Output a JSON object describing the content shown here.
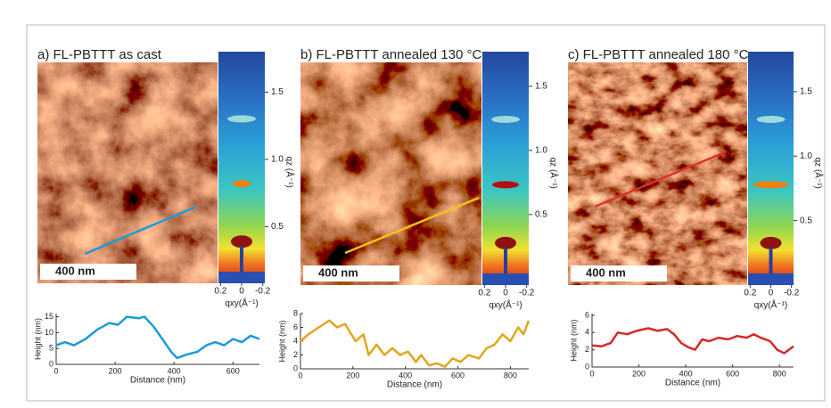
{
  "panels": [
    {
      "title": "a) FL-PBTTT as cast",
      "scale_bar": "400 nm",
      "qz_label": "qz (Å⁻¹)",
      "qz_lim": [
        0.08,
        1.8
      ],
      "qz_ticks": [
        0.5,
        {
          "value": 1,
          "label": "1.0"
        },
        1.5
      ],
      "qxy_label": "qxy(Å⁻¹)",
      "qxy_lim": [
        0.22,
        -0.22
      ],
      "qxy_ticks": [
        0.2,
        0,
        -0.2
      ]
    },
    {
      "title": "b) FL-PBTTT annealed 130 °C",
      "scale_bar": "400 nm",
      "qz_label": "qz (Å⁻¹)",
      "qz_lim": [
        -0.05,
        1.77
      ],
      "qz_ticks": [
        0.5,
        {
          "value": 1,
          "label": "1.0"
        },
        1.5
      ],
      "qxy_label": "qxy(Å⁻¹)",
      "qxy_lim": [
        0.22,
        -0.22
      ],
      "qxy_ticks": [
        0.2,
        0,
        -0.2
      ]
    },
    {
      "title": "c) FL-PBTTT annealed 180 °C",
      "scale_bar": "400 nm",
      "qz_label": "qz (Å⁻¹)",
      "qz_lim": [
        0,
        1.81
      ],
      "qz_ticks": [
        0.5,
        {
          "value": 1,
          "label": "1.0"
        },
        1.5
      ],
      "qxy_label": "qxy(Å⁻¹)",
      "qxy_lim": [
        0.22,
        -0.22
      ],
      "qxy_ticks": [
        0.2,
        0,
        -0.2
      ]
    }
  ],
  "chart_data": [
    {
      "type": "line",
      "x_label": "Distance (nm)",
      "y_label": "Height (nm)",
      "color": "#1a9bd7",
      "x": [
        0,
        30,
        60,
        100,
        140,
        180,
        210,
        240,
        280,
        300,
        330,
        360,
        390,
        410,
        440,
        480,
        510,
        540,
        570,
        600,
        630,
        660,
        690
      ],
      "values": [
        6,
        7,
        6,
        8,
        11,
        13,
        12.5,
        15,
        14.5,
        15,
        12,
        8,
        4,
        2,
        3,
        4,
        6,
        7,
        6,
        8,
        7,
        9,
        8
      ],
      "xlim": [
        0,
        690
      ],
      "ylim": [
        0,
        16
      ],
      "xticks": [
        0,
        200,
        400,
        600
      ],
      "yticks": [
        0,
        5,
        10,
        15
      ]
    },
    {
      "type": "line",
      "x_label": "Distance (nm)",
      "y_label": "Height (nm)",
      "color": "#e0a61c",
      "x": [
        0,
        30,
        70,
        110,
        140,
        170,
        210,
        240,
        260,
        290,
        320,
        350,
        380,
        410,
        440,
        460,
        490,
        520,
        550,
        580,
        610,
        640,
        680,
        710,
        740,
        770,
        800,
        830,
        850,
        870
      ],
      "values": [
        4,
        5,
        6,
        7,
        6,
        6.5,
        4,
        5,
        2,
        3.5,
        2,
        3,
        2,
        2.5,
        1,
        2,
        0.5,
        0.8,
        0.3,
        1.5,
        1,
        2,
        1.5,
        3,
        3.5,
        5,
        4,
        6,
        5,
        7
      ],
      "xlim": [
        0,
        870
      ],
      "ylim": [
        0,
        8
      ],
      "xticks": [
        0,
        200,
        400,
        600,
        800
      ],
      "yticks": [
        0,
        2,
        4,
        6,
        8
      ]
    },
    {
      "type": "line",
      "x_label": "Distance (nm)",
      "y_label": "Height (nm)",
      "color": "#d42a26",
      "x": [
        0,
        40,
        80,
        110,
        150,
        190,
        240,
        280,
        320,
        350,
        380,
        410,
        440,
        470,
        500,
        540,
        580,
        620,
        660,
        690,
        720,
        760,
        790,
        820,
        860
      ],
      "values": [
        2.5,
        2.4,
        2.8,
        4,
        3.8,
        4.2,
        4.5,
        4.2,
        4.4,
        3.8,
        2.8,
        2.3,
        2,
        3.2,
        3,
        3.4,
        3.2,
        3.6,
        3.4,
        3.8,
        3.4,
        3,
        2,
        1.6,
        2.4
      ],
      "xlim": [
        0,
        860
      ],
      "ylim": [
        0,
        6.2
      ],
      "xticks": [
        0,
        200,
        400,
        600,
        800
      ],
      "yticks": [
        0,
        2,
        4,
        6
      ]
    }
  ]
}
